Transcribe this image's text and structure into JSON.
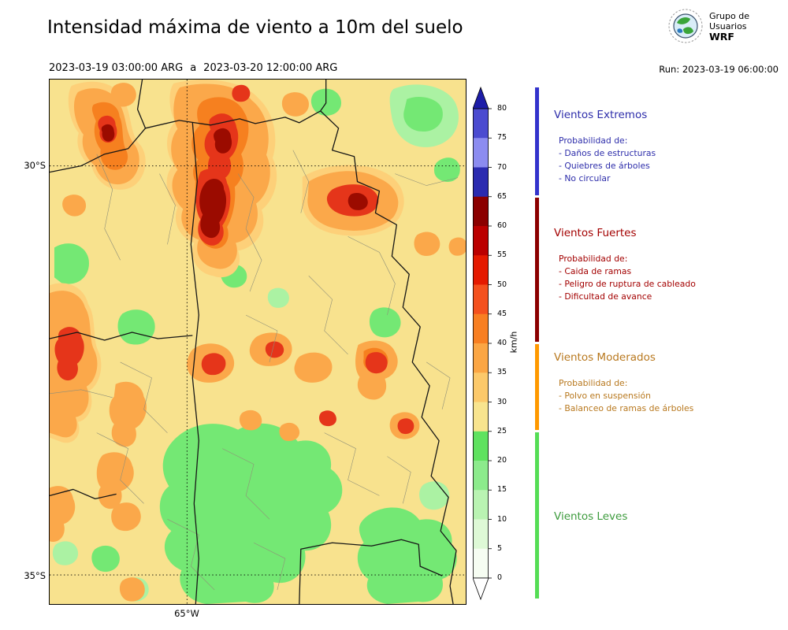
{
  "header": {
    "title": "Intensidad máxima de viento a 10m del suelo",
    "period": {
      "start": "2023-03-19 03:00:00 ARG",
      "sep": "a",
      "end": "2023-03-20 12:00:00 ARG"
    },
    "run_label": "Run: 2023-03-19 06:00:00",
    "logo": {
      "line1": "Grupo de",
      "line2": "Usuarios",
      "line3": "WRF"
    }
  },
  "map": {
    "lat_label_30": "30°S",
    "lat_label_35": "35°S",
    "lon_label_65": "65°W",
    "background_color": "#f8e28e"
  },
  "colorbar": {
    "unit": "km/h",
    "tick_values": [
      80,
      75,
      70,
      65,
      60,
      55,
      50,
      45,
      40,
      35,
      30,
      25,
      20,
      15,
      10,
      5,
      0
    ],
    "over_color": "#1d1da8",
    "under_color": "#ffffff",
    "segments_top_to_bottom": [
      {
        "range": "75-80",
        "color": "#4b4bd0"
      },
      {
        "range": "70-75",
        "color": "#8c8cf0"
      },
      {
        "range": "65-70",
        "color": "#2b2bb0"
      },
      {
        "range": "60-65",
        "color": "#8b0000"
      },
      {
        "range": "55-60",
        "color": "#bb0000"
      },
      {
        "range": "50-55",
        "color": "#e51a00"
      },
      {
        "range": "45-50",
        "color": "#f4511e"
      },
      {
        "range": "40-45",
        "color": "#f87f22"
      },
      {
        "range": "35-40",
        "color": "#fba644"
      },
      {
        "range": "30-35",
        "color": "#fcc96a"
      },
      {
        "range": "25-30",
        "color": "#f8e48e"
      },
      {
        "range": "20-25",
        "color": "#5fe25f"
      },
      {
        "range": "15-20",
        "color": "#8ceb8c"
      },
      {
        "range": "10-15",
        "color": "#b9f3b2"
      },
      {
        "range": "5-10",
        "color": "#def9d6"
      },
      {
        "range": "0-5",
        "color": "#f6fdf2"
      }
    ]
  },
  "legend": {
    "sections": [
      {
        "title": "Vientos Extremos",
        "text_color": "#2d2daa",
        "strip_color": "#3333cc",
        "range_kmh": [
          65,
          85
        ],
        "prob_header": "Probabilidad de:",
        "items": [
          "- Daños de estructuras",
          "- Quiebres de árboles",
          "- No circular"
        ]
      },
      {
        "title": "Vientos Fuertes",
        "text_color": "#a30000",
        "strip_color": "#8b0000",
        "range_kmh": [
          40,
          65
        ],
        "prob_header": "Probabilidad de:",
        "items": [
          "- Caida de ramas",
          "- Peligro de ruptura de cableado",
          "- Dificultad de avance"
        ]
      },
      {
        "title": "Vientos Moderados",
        "text_color": "#b8781e",
        "strip_color": "#ff9900",
        "range_kmh": [
          25,
          40
        ],
        "prob_header": "Probabilidad de:",
        "items": [
          "- Polvo en suspensión",
          "- Balanceo de ramas de árboles"
        ]
      },
      {
        "title": "Vientos Leves",
        "text_color": "#3d9b3d",
        "strip_color": "#55dd55",
        "range_kmh": [
          0,
          25
        ],
        "prob_header": "",
        "items": []
      }
    ]
  }
}
